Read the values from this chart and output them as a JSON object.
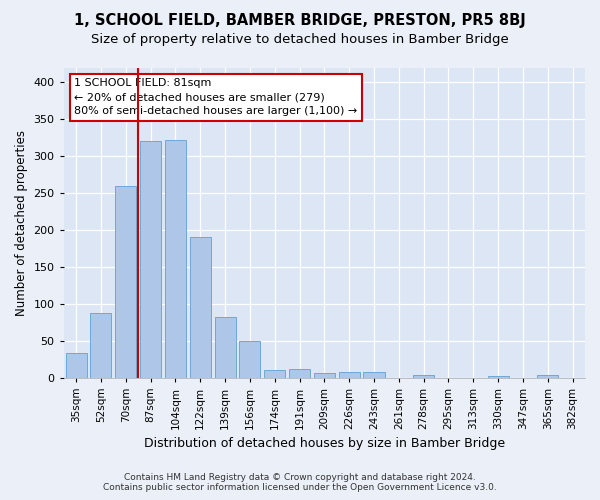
{
  "title": "1, SCHOOL FIELD, BAMBER BRIDGE, PRESTON, PR5 8BJ",
  "subtitle": "Size of property relative to detached houses in Bamber Bridge",
  "xlabel": "Distribution of detached houses by size in Bamber Bridge",
  "ylabel": "Number of detached properties",
  "footer_line1": "Contains HM Land Registry data © Crown copyright and database right 2024.",
  "footer_line2": "Contains public sector information licensed under the Open Government Licence v3.0.",
  "categories": [
    "35sqm",
    "52sqm",
    "70sqm",
    "87sqm",
    "104sqm",
    "122sqm",
    "139sqm",
    "156sqm",
    "174sqm",
    "191sqm",
    "209sqm",
    "226sqm",
    "243sqm",
    "261sqm",
    "278sqm",
    "295sqm",
    "313sqm",
    "330sqm",
    "347sqm",
    "365sqm",
    "382sqm"
  ],
  "values": [
    33,
    88,
    260,
    320,
    322,
    190,
    82,
    50,
    10,
    11,
    6,
    7,
    7,
    0,
    4,
    0,
    0,
    2,
    0,
    3,
    0
  ],
  "bar_color": "#aec6e8",
  "bar_edge_color": "#6fa8d4",
  "annotation_text": "1 SCHOOL FIELD: 81sqm\n← 20% of detached houses are smaller (279)\n80% of semi-detached houses are larger (1,100) →",
  "annotation_box_color": "#ffffff",
  "annotation_box_edge": "#cc0000",
  "vline_x": 2.5,
  "vline_color": "#cc0000",
  "ylim": [
    0,
    420
  ],
  "yticks": [
    0,
    50,
    100,
    150,
    200,
    250,
    300,
    350,
    400
  ],
  "bg_color": "#eaeff8",
  "plot_bg": "#dce6f4",
  "title_fontsize": 10.5,
  "subtitle_fontsize": 9.5
}
